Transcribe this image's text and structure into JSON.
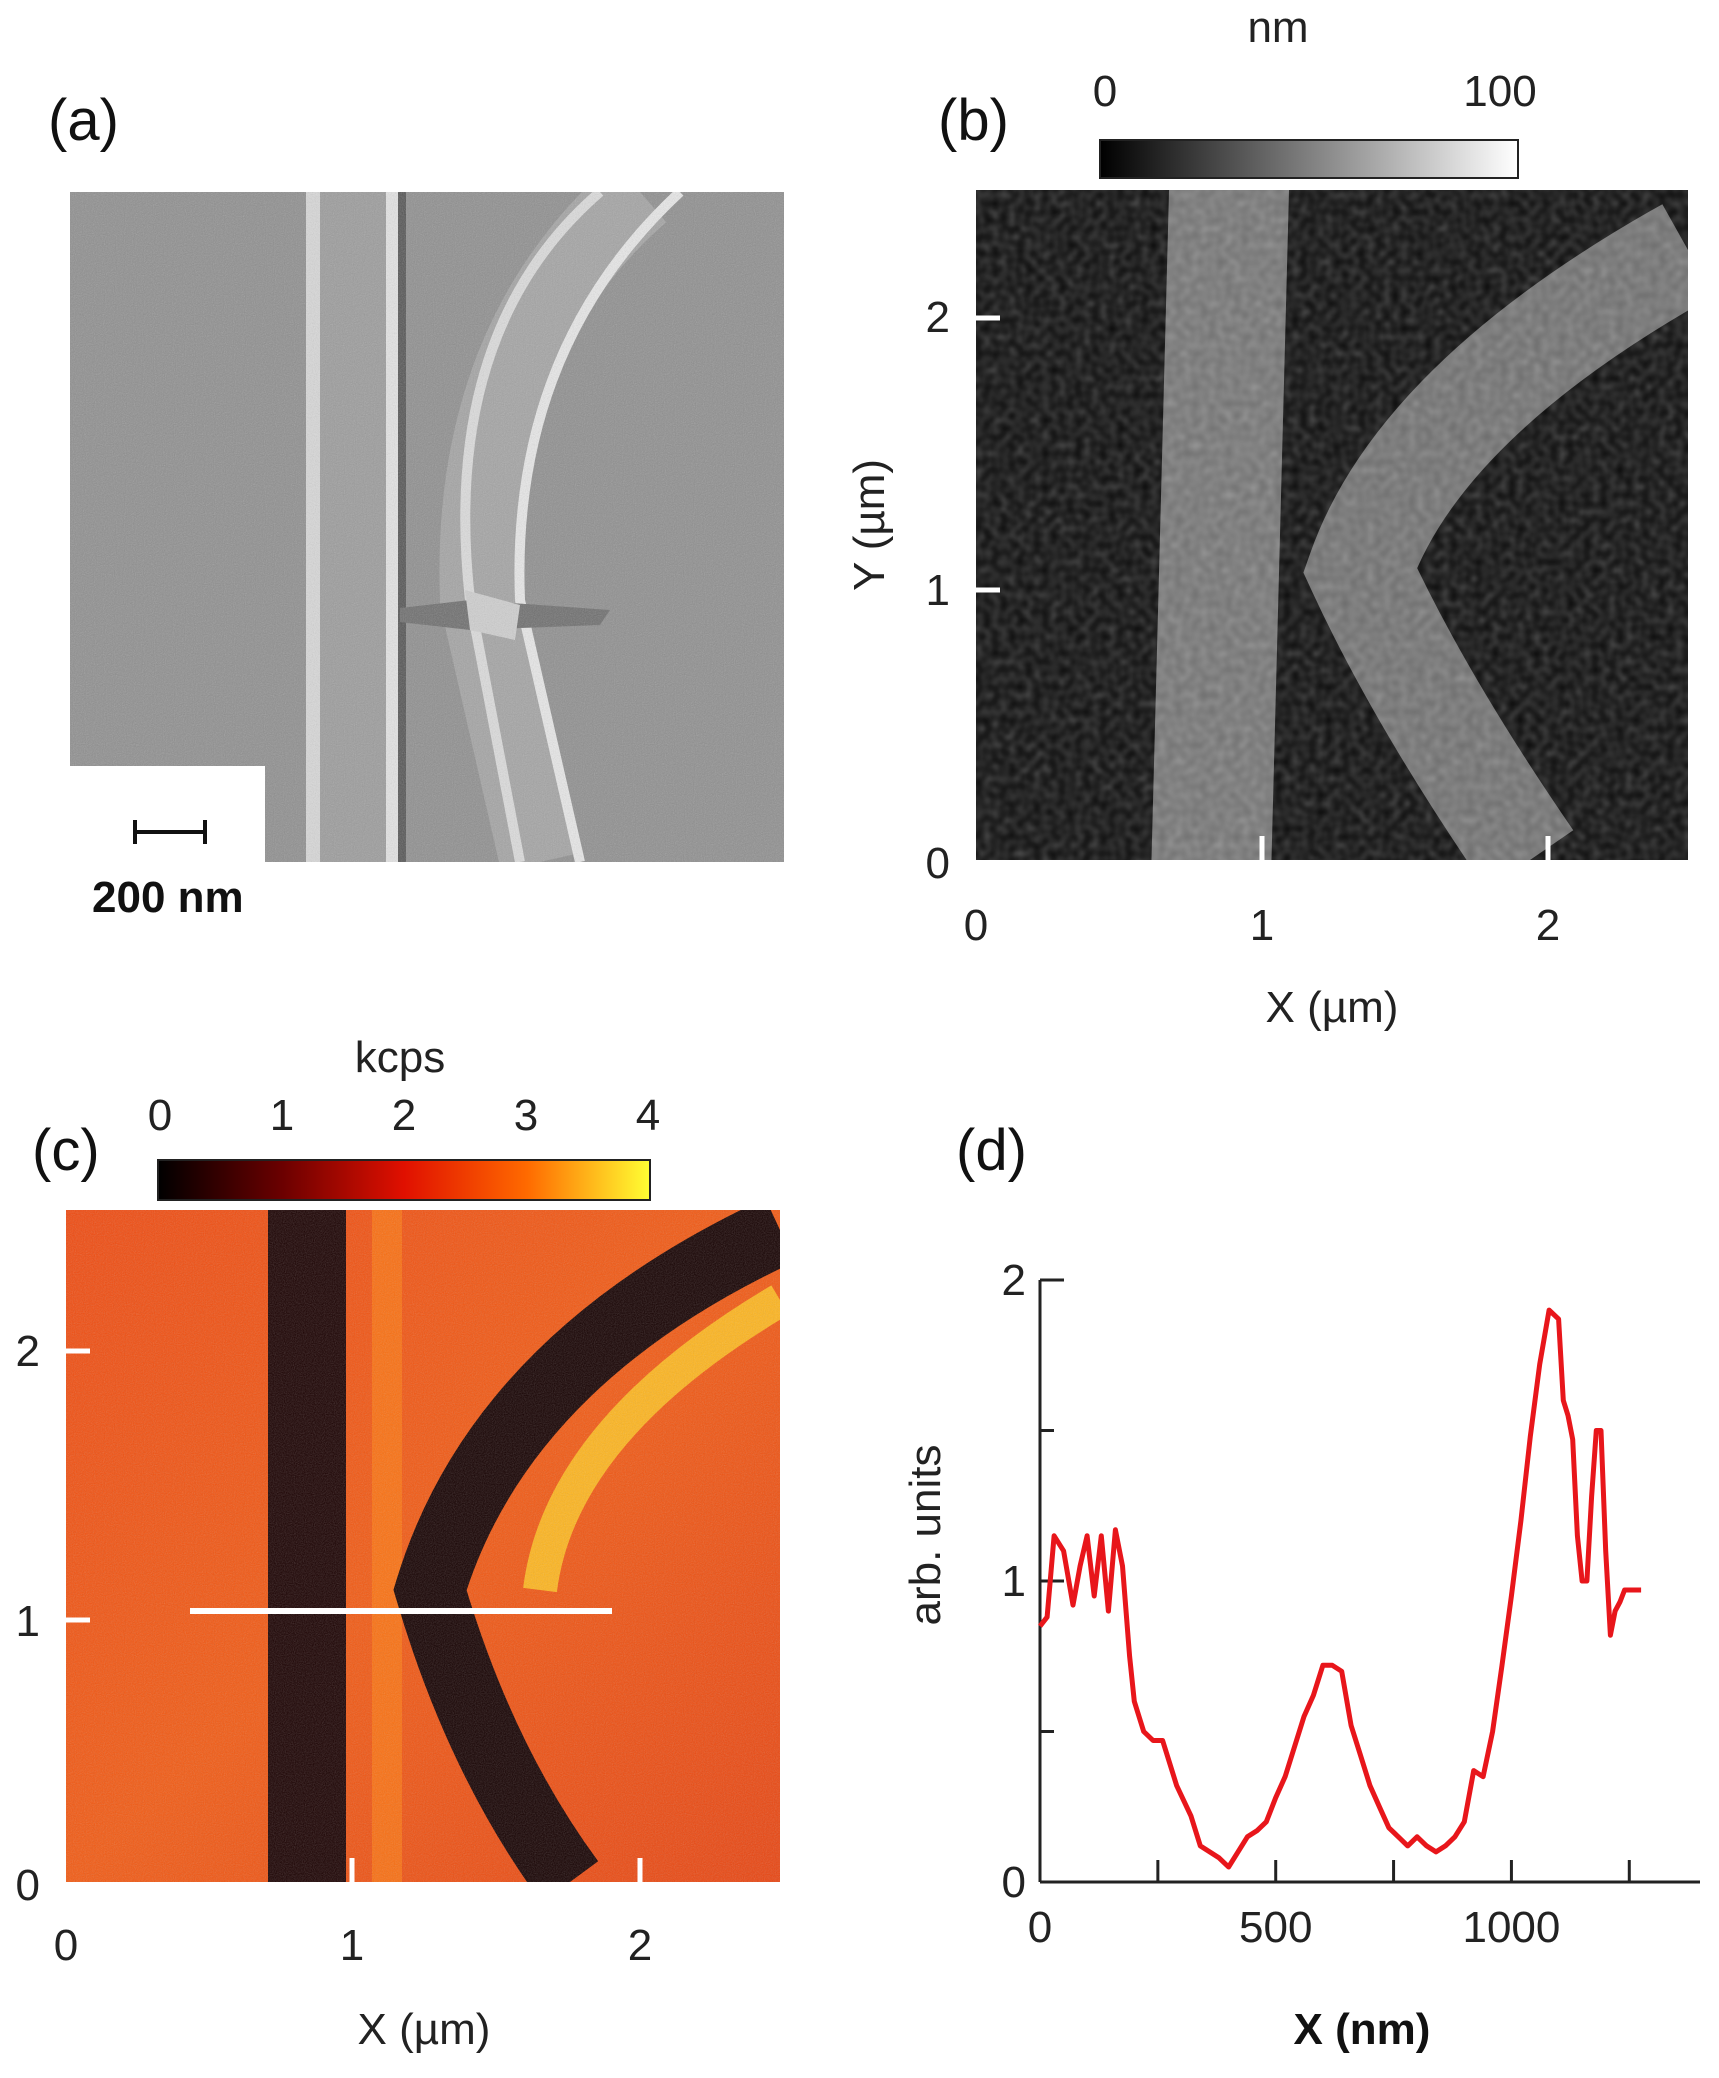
{
  "panels": {
    "a": {
      "label": "(a)",
      "scalebar_text": "200 nm"
    },
    "b": {
      "label": "(b)",
      "colorbar": {
        "unit": "nm",
        "min_label": "0",
        "max_label": "100"
      },
      "xlabel": "X (µm)",
      "ylabel": "Y (µm)",
      "xticks": [
        "0",
        "1",
        "2"
      ],
      "yticks": [
        "0",
        "1",
        "2"
      ]
    },
    "c": {
      "label": "(c)",
      "colorbar": {
        "unit": "kcps",
        "labels": [
          "0",
          "1",
          "2",
          "3",
          "4"
        ]
      },
      "xlabel": "X (µm)",
      "xticks": [
        "0",
        "1",
        "2"
      ],
      "yticks": [
        "0",
        "1",
        "2"
      ]
    },
    "d": {
      "label": "(d)",
      "xlabel": "X (nm)",
      "ylabel": "arb. units",
      "xticks": [
        "0",
        "500",
        "1000"
      ],
      "yticks": [
        "0",
        "1",
        "2"
      ]
    }
  },
  "colors": {
    "profile_line": "#e8161b",
    "hot_low": "#000000",
    "hot_high": "#ffff33"
  },
  "chart_data": {
    "type": "line",
    "xlabel": "X (nm)",
    "ylabel": "arb. units",
    "xlim": [
      0,
      1400
    ],
    "ylim": [
      0,
      2
    ],
    "series": [
      {
        "x": [
          0,
          15,
          30,
          50,
          70,
          85,
          100,
          115,
          130,
          145,
          160,
          175,
          190,
          200,
          220,
          240,
          260,
          290,
          320,
          340,
          360,
          380,
          400,
          420,
          440,
          460,
          480,
          500,
          520,
          540,
          560,
          580,
          600,
          620,
          640,
          660,
          680,
          700,
          720,
          740,
          760,
          780,
          800,
          820,
          840,
          860,
          880,
          900,
          920,
          940,
          960,
          980,
          1000,
          1020,
          1040,
          1060,
          1080,
          1100,
          1110,
          1120,
          1130,
          1140,
          1150,
          1160,
          1170,
          1180,
          1190,
          1200,
          1210,
          1220,
          1230,
          1240,
          1250,
          1260,
          1275
        ],
        "values": [
          0.85,
          0.88,
          1.15,
          1.1,
          0.92,
          1.05,
          1.15,
          0.95,
          1.15,
          0.9,
          1.17,
          1.05,
          0.75,
          0.6,
          0.5,
          0.47,
          0.47,
          0.32,
          0.22,
          0.12,
          0.1,
          0.08,
          0.05,
          0.1,
          0.15,
          0.17,
          0.2,
          0.28,
          0.35,
          0.45,
          0.55,
          0.62,
          0.72,
          0.72,
          0.7,
          0.52,
          0.42,
          0.32,
          0.25,
          0.18,
          0.15,
          0.12,
          0.15,
          0.12,
          0.1,
          0.12,
          0.15,
          0.2,
          0.37,
          0.35,
          0.5,
          0.72,
          0.95,
          1.2,
          1.48,
          1.72,
          1.9,
          1.87,
          1.6,
          1.55,
          1.47,
          1.15,
          1.0,
          1.0,
          1.28,
          1.5,
          1.5,
          1.1,
          0.82,
          0.9,
          0.93,
          0.97,
          0.97,
          0.97,
          0.97
        ]
      }
    ]
  }
}
